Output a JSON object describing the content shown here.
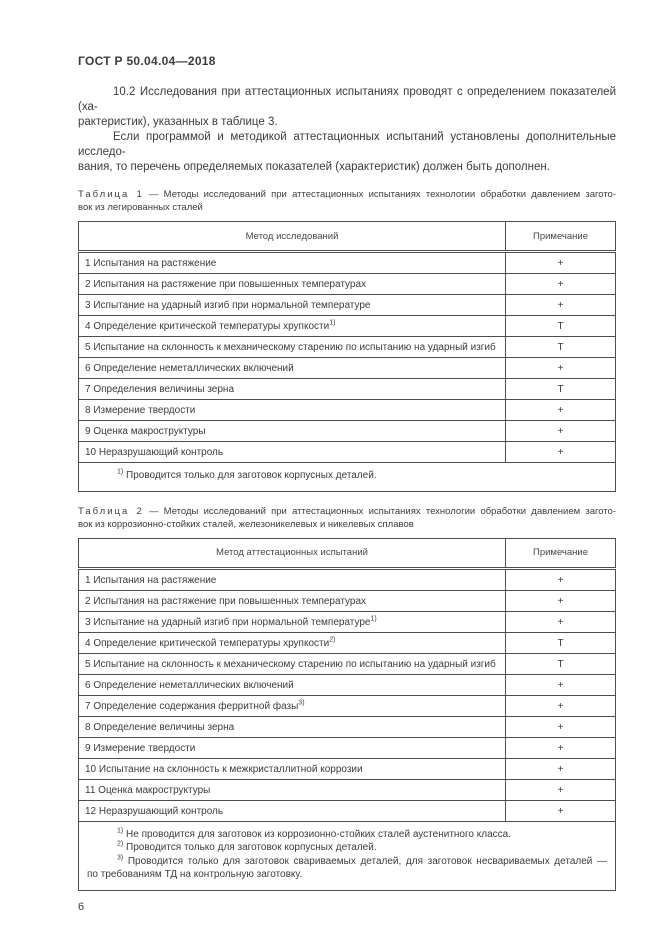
{
  "header": {
    "title": "ГОСТ Р 50.04.04—2018"
  },
  "paragraphs": {
    "p1": {
      "lines": [
        "10.2  Исследования при аттестационных испытаниях проводят с определением показателей (ха-",
        "рактеристик), указанных в таблице 3."
      ]
    },
    "p2": {
      "lines": [
        "Если программой и методикой аттестационных испытаний установлены дополнительные исследо-",
        "вания, то перечень определяемых показателей (характеристик) должен быть дополнен."
      ]
    }
  },
  "table1": {
    "caption": {
      "label": "Таблица 1",
      "line1_rest": "— Методы исследований при аттестационных испытаниях технологии обработки давлением загото-",
      "line2": "вок из легированных сталей"
    },
    "col_headers": [
      "Метод исследований",
      "Примечание"
    ],
    "rows": [
      {
        "method": "1 Испытания на растяжение",
        "sup": "",
        "note": "+"
      },
      {
        "method": "2 Испытания на растяжение при повышенных температурах",
        "sup": "",
        "note": "+"
      },
      {
        "method": "3 Испытание на ударный изгиб при нормальной температуре",
        "sup": "",
        "note": "+"
      },
      {
        "method": "4 Определение критической температуры хрупкости",
        "sup": "1)",
        "note": "Т"
      },
      {
        "method": "5 Испытание на склонность к механическому старению по испытанию на ударный изгиб",
        "sup": "",
        "note": "Т"
      },
      {
        "method": "6 Определение неметаллических включений",
        "sup": "",
        "note": "+"
      },
      {
        "method": "7 Определения величины зерна",
        "sup": "",
        "note": "Т"
      },
      {
        "method": "8 Измерение твердости",
        "sup": "",
        "note": "+"
      },
      {
        "method": "9 Оценка макроструктуры",
        "sup": "",
        "note": "+"
      },
      {
        "method": "10 Неразрушающий контроль",
        "sup": "",
        "note": "+"
      }
    ],
    "footnotes": [
      {
        "marker": "1)",
        "lines": [
          "Проводится только для заготовок корпусных деталей."
        ]
      }
    ]
  },
  "table2": {
    "caption": {
      "label": "Таблица 2",
      "line1_rest": "— Методы исследований при аттестационных испытаниях технологии обработки давлением загото-",
      "line2": "вок из коррозионно-стойких сталей, железоникелевых и никелевых сплавов"
    },
    "col_headers": [
      "Метод аттестационных испытаний",
      "Примечание"
    ],
    "rows": [
      {
        "method": "1 Испытания на растяжение",
        "sup": "",
        "note": "+"
      },
      {
        "method": "2 Испытания на растяжение при повышенных температурах",
        "sup": "",
        "note": "+"
      },
      {
        "method": "3 Испытание на ударный изгиб при нормальной температуре",
        "sup": "1)",
        "note": "+"
      },
      {
        "method": "4 Определение критической температуры хрупкости",
        "sup": "2)",
        "note": "Т"
      },
      {
        "method": "5 Испытание на склонность к механическому старению по испытанию на ударный изгиб",
        "sup": "",
        "note": "Т"
      },
      {
        "method": "6 Определение неметаллических включений",
        "sup": "",
        "note": "+"
      },
      {
        "method": "7 Определение содержания ферритной фазы",
        "sup": "3)",
        "note": "+"
      },
      {
        "method": "8 Определение величины зерна",
        "sup": "",
        "note": "+"
      },
      {
        "method": "9 Измерение твердости",
        "sup": "",
        "note": "+"
      },
      {
        "method": "10 Испытание на склонность к межкристаллитной коррозии",
        "sup": "",
        "note": "+"
      },
      {
        "method": "11 Оценка макроструктуры",
        "sup": "",
        "note": "+"
      },
      {
        "method": "12 Неразрушающий контроль",
        "sup": "",
        "note": "+"
      }
    ],
    "footnotes": [
      {
        "marker": "1)",
        "lines": [
          "Не проводится для заготовок из коррозионно-стойких сталей аустенитного класса."
        ]
      },
      {
        "marker": "2)",
        "lines": [
          "Проводится только для заготовок корпусных деталей."
        ]
      },
      {
        "marker": "3)",
        "lines": [
          "Проводится только для заготовок свариваемых деталей, для заготовок несвариваемых деталей —",
          "по требованиям ТД на контрольную заготовку."
        ]
      }
    ]
  },
  "footer": {
    "page_number": "6"
  }
}
